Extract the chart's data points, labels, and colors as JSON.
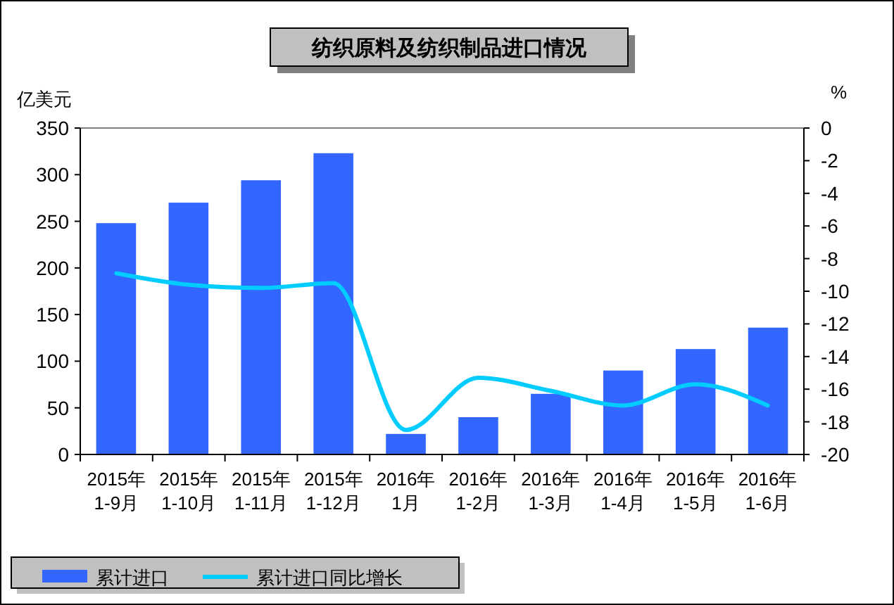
{
  "chart_data": {
    "type": "bar",
    "title": "纺织原料及纺织制品进口情况",
    "ylabel": "亿美元",
    "y2label": "%",
    "categories": [
      "2015年\n1-9月",
      "2015年\n1-10月",
      "2015年\n1-11月",
      "2015年\n1-12月",
      "2016年\n1月",
      "2016年\n1-2月",
      "2016年\n1-3月",
      "2016年\n1-4月",
      "2016年\n1-5月",
      "2016年\n1-6月"
    ],
    "series": [
      {
        "name": "累计进口",
        "color": "#3366ff",
        "values": [
          248,
          270,
          294,
          323,
          22,
          40,
          65,
          90,
          113,
          136
        ]
      },
      {
        "name": "累计进口同比增长",
        "type": "line",
        "axis": "y2",
        "color": "#00ccff",
        "values": [
          -8.9,
          -9.6,
          -9.8,
          -9.5,
          -18.5,
          -15.3,
          -16.1,
          -17.0,
          -15.7,
          -17.0
        ]
      }
    ],
    "ylim": [
      0,
      350
    ],
    "yticks": [
      0,
      50,
      100,
      150,
      200,
      250,
      300,
      350
    ],
    "y2lim": [
      -20,
      0
    ],
    "y2ticks": [
      -20,
      -18,
      -16,
      -14,
      -12,
      -10,
      -8,
      -6,
      -4,
      -2,
      0
    ],
    "grid": false,
    "legend": "bottom",
    "marker": "none",
    "line_style": "solid"
  }
}
